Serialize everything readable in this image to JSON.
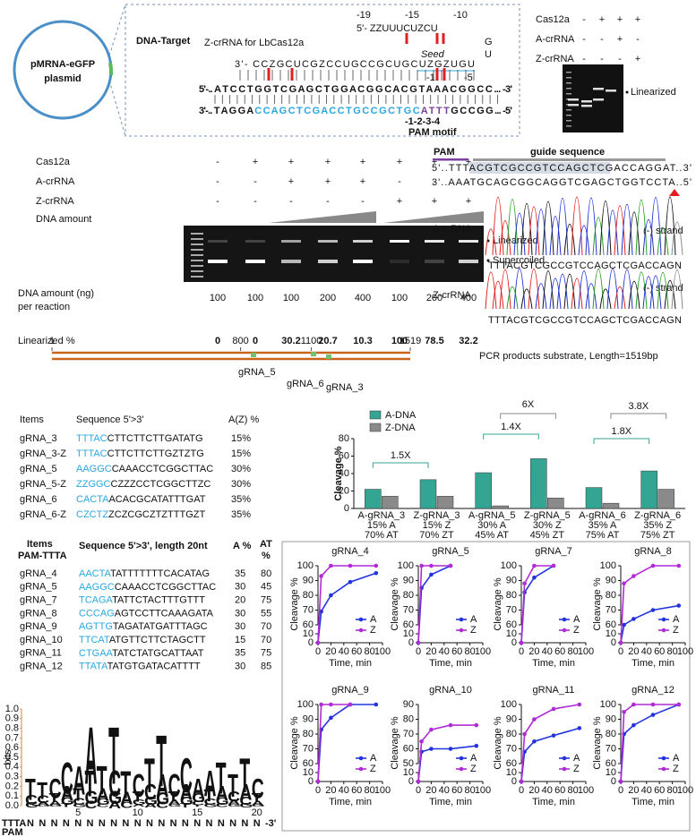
{
  "plasmid": {
    "label": [
      "pMRNA-eGFP",
      "plasmid"
    ]
  },
  "dna_target": {
    "title": "DNA-Target",
    "crrna_title": "Z-crRNA for LbCas12a",
    "positions_top": [
      "-19",
      "-15",
      "-10"
    ],
    "crrna_5": "5'- ZZUUUCUZCU",
    "loop": [
      "G",
      "U"
    ],
    "crrna_3": "3'- CCZGCUCGZCCUGCCGCUGCUZGZUGU",
    "seed": "Seed",
    "positions_mid": [
      "-1",
      "-5"
    ],
    "top_strand": "5'-.. A T C C T G G T C G A G C T G G A C G G C A C G T A A A C G G C C ... -3'",
    "bottom_strand": [
      "3'-.. T A G G A ",
      "C C A G C T C G A C C T G C C G C T G C ",
      "A T T T ",
      "G C C G G ... -5'"
    ],
    "pam_positions": "-1-2-3-4",
    "pam": "PAM motif"
  },
  "gel_top": {
    "rows": [
      {
        "label": "Cas12a",
        "signs": [
          "-",
          "+",
          "+",
          "+"
        ]
      },
      {
        "label": "A-crRNA",
        "signs": [
          "-",
          "-",
          "+",
          "-"
        ]
      },
      {
        "label": "Z-crRNA",
        "signs": [
          "-",
          "-",
          "-",
          "+"
        ]
      }
    ],
    "band_label": "Linearized"
  },
  "gel_mid": {
    "rows": [
      {
        "label": "Cas12a",
        "signs": [
          "-",
          "+",
          "+",
          "+",
          "+",
          "+",
          "+",
          "+"
        ]
      },
      {
        "label": "A-crRNA",
        "signs": [
          "-",
          "-",
          "+",
          "+",
          "+",
          "-",
          "-",
          "-"
        ]
      },
      {
        "label": "Z-crRNA",
        "signs": [
          "-",
          "-",
          "-",
          "-",
          "-",
          "+",
          "+",
          "+"
        ]
      }
    ],
    "amount_label": "DNA amount",
    "bands": [
      "Linearized",
      "Supercoiled"
    ],
    "amount_row_label": [
      "DNA amount (ng)",
      "per reaction"
    ],
    "amounts": [
      100,
      100,
      100,
      200,
      400,
      100,
      200,
      400
    ],
    "linearized_label": "Linearized %",
    "linearized": [
      0,
      0,
      30.2,
      20.7,
      10.3,
      100,
      78.5,
      32.2
    ]
  },
  "sanger": {
    "pam": "PAM",
    "guide": "guide sequence",
    "top": "5'..TTTACGTCGCCGTCCAGCTCGACCAGGAT..3'",
    "bottom": "3'..AAATGCAGCGGCAGGTCGAGCTGGTCCTA..5'",
    "traces": [
      {
        "label": "A-crRNA",
        "strand": "(-) strand",
        "bases": "TTTACGTCGCCGTCCAGCTCGACCAGN"
      },
      {
        "label": "Z-crRNA",
        "strand": "(-) strand",
        "bases": "TTTACGTCGCCGTCCAGCTCGACCAGN"
      }
    ]
  },
  "substrate": {
    "ticks": [
      1,
      800,
      1100,
      1519
    ],
    "guides": [
      "gRNA_5",
      "gRNA_6",
      "gRNA_3"
    ],
    "label": "PCR products substrate, Length=1519bp"
  },
  "table1": {
    "header": [
      "Items",
      "Sequence 5'>3'",
      "A(Z) %"
    ],
    "rows": [
      [
        "gRNA_3",
        "TTTAC",
        "CTTCTTCTTGATATG",
        "15%"
      ],
      [
        "gRNA_3-Z",
        "TTTAC",
        "CTTCTTCTTGZTZTG",
        "15%"
      ],
      [
        "gRNA_5",
        "AAGGC",
        "CAAACCTCGGCTTAC",
        "30%"
      ],
      [
        "gRNA_5-Z",
        "ZZGGC",
        "CZZZCCTCGGCTTZC",
        "30%"
      ],
      [
        "gRNA_6",
        "CACTA",
        "ACACGCATATTTGAT",
        "35%"
      ],
      [
        "gRNA_6-Z",
        "CZCTZ",
        "ZCZCGCZTZTTTGZT",
        "35%"
      ]
    ]
  },
  "table2": {
    "header": [
      "Items",
      "PAM-TTTA",
      "Sequence  5'>3',  length 20nt",
      "A %",
      "AT",
      "%"
    ],
    "rows": [
      [
        "gRNA_4",
        "AACTA",
        "TATTTTTTTCACATAG",
        35,
        80
      ],
      [
        "gRNA_5",
        "AAGGC",
        "CAAACCTCGGCTTAC",
        30,
        45
      ],
      [
        "gRNA_7",
        "TCAGA",
        "TATTCTACTTTGTTT",
        20,
        75
      ],
      [
        "gRNA_8",
        "CCCAG",
        "AGTCCTTCAAAGATA",
        30,
        55
      ],
      [
        "gRNA_9",
        "AGTTG",
        "TAGATATGATTTAGC",
        30,
        70
      ],
      [
        "gRNA_10",
        "TTCAT",
        "ATGTTCTTCTAGCTT",
        15,
        70
      ],
      [
        "gRNA_11",
        "CTGAA",
        "TATCTATGCATTAAT",
        35,
        75
      ],
      [
        "gRNA_12",
        "TTATA",
        "TATGTGATACATTTT",
        30,
        85
      ]
    ]
  },
  "logo": {
    "ylabel": "bits",
    "yticks": [
      {
        "value": 0,
        "label": "0.0"
      },
      {
        "value": 0.1,
        "label": "0.1"
      },
      {
        "value": 0.2,
        "label": "0.2"
      },
      {
        "value": 0.3,
        "label": "0.3"
      },
      {
        "value": 0.4,
        "label": "0.4"
      },
      {
        "value": 0.5,
        "label": "0.5"
      },
      {
        "value": 0.6,
        "label": "0.6"
      },
      {
        "value": 0.7,
        "label": "0.7"
      },
      {
        "value": 0.8,
        "label": "0.8"
      },
      {
        "value": 0.9,
        "label": "0.9"
      },
      {
        "value": 1,
        "label": "1.0"
      }
    ],
    "columns": [
      [
        "T",
        "C",
        "G"
      ],
      [
        "T",
        "C",
        "A",
        "G"
      ],
      [
        "C",
        "T",
        "A",
        "G"
      ],
      [
        "C",
        "A",
        "G",
        "T"
      ],
      [
        "A",
        "T",
        "C",
        "G"
      ],
      [
        "A",
        "T",
        "G",
        "C"
      ],
      [
        "T",
        "A",
        "G",
        "C"
      ],
      [
        "T",
        "C",
        "G",
        "A"
      ],
      [
        "T",
        "A",
        "C"
      ],
      [
        "C",
        "T",
        "G",
        "A"
      ],
      [
        "T",
        "C",
        "G",
        "A"
      ],
      [
        "T",
        "A",
        "G",
        "C"
      ],
      [
        "C",
        "T",
        "A",
        "G"
      ],
      [
        "C",
        "A",
        "G",
        "T"
      ],
      [
        "A",
        "G",
        "C",
        "T"
      ],
      [
        "A",
        "T",
        "C",
        "G"
      ],
      [
        "T",
        "A",
        "G",
        "C"
      ],
      [
        "T",
        "C",
        "A",
        "G"
      ],
      [
        "T",
        "A",
        "C",
        "G"
      ],
      [
        "C",
        "T",
        "A",
        "G"
      ]
    ],
    "heights": [
      0.35,
      0.3,
      0.35,
      0.55,
      0.5,
      1.0,
      0.5,
      1.0,
      0.45,
      0.4,
      0.6,
      0.9,
      0.4,
      0.6,
      0.35,
      0.45,
      0.55,
      0.4,
      0.6,
      0.35
    ],
    "positions": [
      5,
      10,
      15,
      20
    ],
    "pam_seq": "TTTA",
    "n": "N",
    "end": "-3'",
    "pam": "PAM"
  },
  "chart_data": [
    {
      "type": "bar",
      "ylabel": "Cleavage %",
      "categories": [
        "A-gRNA_3",
        "Z-gRNA_3",
        "A-gRNA_5",
        "Z-gRNA_5",
        "A-gRNA_6",
        "Z-gRNA_6"
      ],
      "category_lines": [
        [
          "15% A",
          "70% AT"
        ],
        [
          "15% Z",
          "70% ZT"
        ],
        [
          "30% A",
          "45% AT"
        ],
        [
          "30% Z",
          "45% ZT"
        ],
        [
          "35% A",
          "75% AT"
        ],
        [
          "35% Z",
          "75% ZT"
        ]
      ],
      "series": [
        {
          "name": "A-DNA",
          "color": "#35a593",
          "values": [
            22,
            33,
            41,
            57,
            24,
            43
          ]
        },
        {
          "name": "Z-DNA",
          "color": "#8a8a8a",
          "values": [
            14,
            14,
            3,
            12,
            6,
            22
          ]
        }
      ],
      "annotations": [
        "1.5X",
        "1.4X",
        "6X",
        "1.8X",
        "3.8X"
      ],
      "ylim": [
        0,
        80
      ],
      "yticks": [
        0,
        20,
        40,
        60,
        80
      ]
    },
    {
      "type": "line",
      "title": "gRNA_4",
      "xlabel": "Time, min",
      "ylabel": "Cleavage %",
      "x": [
        0,
        5,
        20,
        50,
        90
      ],
      "series": [
        {
          "name": "A",
          "color": "#2233dd",
          "values": [
            0,
            69,
            80,
            89,
            95
          ]
        },
        {
          "name": "Z",
          "color": "#b02bd6",
          "values": [
            0,
            93,
            100,
            100,
            100
          ]
        }
      ],
      "xlim": [
        0,
        100
      ],
      "xticks": [
        0,
        20,
        40,
        60,
        80,
        100
      ],
      "ylim": [
        0,
        100
      ],
      "ybreak": [
        10,
        60
      ],
      "yticks": [
        0,
        10,
        60,
        70,
        80,
        90,
        100
      ]
    },
    {
      "type": "line",
      "title": "gRNA_5",
      "xlabel": "Time, min",
      "ylabel": "Cleavage %",
      "x": [
        0,
        5,
        20,
        50,
        90
      ],
      "series": [
        {
          "name": "A",
          "color": "#2233dd",
          "values": [
            0,
            85,
            94,
            100,
            null
          ]
        },
        {
          "name": "Z",
          "color": "#b02bd6",
          "values": [
            0,
            100,
            100,
            100,
            null
          ]
        }
      ],
      "xlim": [
        0,
        100
      ],
      "xticks": [
        0,
        20,
        40,
        60,
        80,
        100
      ],
      "ylim": [
        0,
        100
      ],
      "ybreak": [
        10,
        60
      ],
      "yticks": [
        0,
        10,
        60,
        70,
        80,
        90,
        100
      ]
    },
    {
      "type": "line",
      "title": "gRNA_7",
      "xlabel": "Time, min",
      "ylabel": "Cleavage %",
      "x": [
        0,
        5,
        20,
        50,
        90
      ],
      "series": [
        {
          "name": "A",
          "color": "#2233dd",
          "values": [
            0,
            82,
            92,
            100,
            null
          ]
        },
        {
          "name": "Z",
          "color": "#b02bd6",
          "values": [
            0,
            88,
            100,
            100,
            null
          ]
        }
      ],
      "xlim": [
        0,
        100
      ],
      "xticks": [
        0,
        20,
        40,
        60,
        80,
        100
      ],
      "ylim": [
        0,
        100
      ],
      "ybreak": [
        10,
        60
      ],
      "yticks": [
        0,
        10,
        60,
        70,
        80,
        90,
        100
      ]
    },
    {
      "type": "line",
      "title": "gRNA_8",
      "xlabel": "Time, min",
      "ylabel": "Cleavage %",
      "x": [
        0,
        5,
        20,
        50,
        90
      ],
      "series": [
        {
          "name": "A",
          "color": "#2233dd",
          "values": [
            0,
            60,
            64,
            70,
            73
          ]
        },
        {
          "name": "Z",
          "color": "#b02bd6",
          "values": [
            0,
            88,
            93,
            100,
            100
          ]
        }
      ],
      "xlim": [
        0,
        100
      ],
      "xticks": [
        0,
        20,
        40,
        60,
        80,
        100
      ],
      "ylim": [
        0,
        100
      ],
      "ybreak": [
        10,
        60
      ],
      "yticks": [
        0,
        10,
        60,
        70,
        80,
        90,
        100
      ]
    },
    {
      "type": "line",
      "title": "gRNA_9",
      "xlabel": "Time, min",
      "ylabel": "Cleavage %",
      "x": [
        0,
        5,
        20,
        50,
        90
      ],
      "series": [
        {
          "name": "A",
          "color": "#2233dd",
          "values": [
            0,
            83,
            91,
            100,
            100
          ]
        },
        {
          "name": "Z",
          "color": "#b02bd6",
          "values": [
            0,
            100,
            100,
            100,
            null
          ]
        }
      ],
      "xlim": [
        0,
        100
      ],
      "xticks": [
        0,
        20,
        40,
        60,
        80,
        100
      ],
      "ylim": [
        0,
        100
      ],
      "ybreak": [
        10,
        60
      ],
      "yticks": [
        0,
        10,
        60,
        70,
        80,
        90,
        100
      ]
    },
    {
      "type": "line",
      "title": "gRNA_10",
      "xlabel": "Time, min",
      "ylabel": "Cleavage %",
      "x": [
        0,
        5,
        20,
        50,
        90
      ],
      "series": [
        {
          "name": "A",
          "color": "#2233dd",
          "values": [
            0,
            58,
            60,
            60,
            62
          ]
        },
        {
          "name": "Z",
          "color": "#b02bd6",
          "values": [
            0,
            65,
            73,
            76,
            76
          ]
        }
      ],
      "xlim": [
        0,
        100
      ],
      "xticks": [
        0,
        20,
        40,
        60,
        80,
        100
      ],
      "ylim": [
        0,
        90
      ],
      "ybreak": [
        10,
        50
      ],
      "yticks": [
        0,
        10,
        50,
        60,
        70,
        80,
        90
      ]
    },
    {
      "type": "line",
      "title": "gRNA_11",
      "xlabel": "Time, min",
      "ylabel": "Cleavage %",
      "x": [
        0,
        5,
        20,
        50,
        90
      ],
      "series": [
        {
          "name": "A",
          "color": "#2233dd",
          "values": [
            0,
            68,
            75,
            79,
            84
          ]
        },
        {
          "name": "Z",
          "color": "#b02bd6",
          "values": [
            0,
            80,
            90,
            97,
            100
          ]
        }
      ],
      "xlim": [
        0,
        100
      ],
      "xticks": [
        0,
        20,
        40,
        60,
        80,
        100
      ],
      "ylim": [
        0,
        100
      ],
      "ybreak": [
        10,
        60
      ],
      "yticks": [
        0,
        10,
        60,
        70,
        80,
        90,
        100
      ]
    },
    {
      "type": "line",
      "title": "gRNA_12",
      "xlabel": "Time, min",
      "ylabel": "Cleavage %",
      "x": [
        0,
        5,
        20,
        50,
        90
      ],
      "series": [
        {
          "name": "A",
          "color": "#2233dd",
          "values": [
            0,
            80,
            86,
            93,
            100
          ]
        },
        {
          "name": "Z",
          "color": "#b02bd6",
          "values": [
            0,
            95,
            100,
            100,
            100
          ]
        }
      ],
      "xlim": [
        0,
        100
      ],
      "xticks": [
        0,
        20,
        40,
        60,
        80,
        100
      ],
      "ylim": [
        0,
        100
      ],
      "ybreak": [
        10,
        60
      ],
      "yticks": [
        0,
        10,
        60,
        70,
        80,
        90,
        100
      ]
    }
  ]
}
